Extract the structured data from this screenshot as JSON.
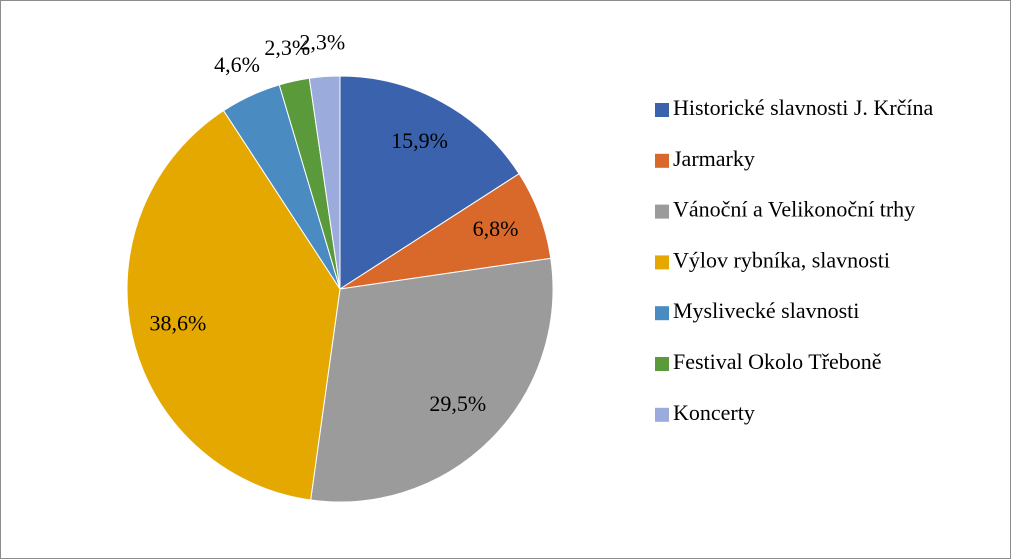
{
  "chart_data": {
    "type": "pie",
    "categories": [
      "Historické slavnosti J. Krčína",
      "Jarmarky",
      "Vánoční a Velikonoční trhy",
      "Výlov rybníka, slavnosti",
      "Myslivecké slavnosti",
      "Festival Okolo Třeboně",
      "Koncerty"
    ],
    "values": [
      15.9,
      6.8,
      29.5,
      38.6,
      4.6,
      2.3,
      2.3
    ],
    "value_labels": [
      "15,9%",
      "6,8%",
      "29,5%",
      "38,6%",
      "4,6%",
      "2,3%",
      "2,3%"
    ],
    "colors": [
      "#3a62ad",
      "#d9682b",
      "#9b9b9b",
      "#e5a800",
      "#4a8cc2",
      "#5a9a3a",
      "#9aabdc"
    ],
    "legend": "right"
  }
}
